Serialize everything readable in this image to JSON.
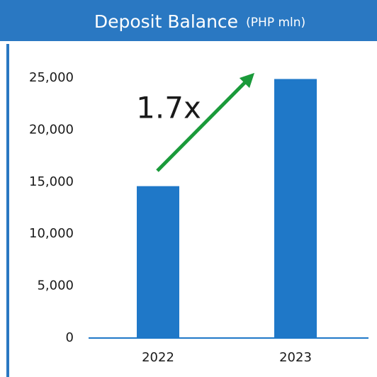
{
  "chart_data": {
    "type": "bar",
    "title": "Deposit Balance",
    "subtitle": "(PHP mln)",
    "categories": [
      "2022",
      "2023"
    ],
    "values": [
      14600,
      24900
    ],
    "color": "#1f78c8",
    "ylim": [
      0,
      25000
    ],
    "yticks": [
      0,
      {
        "value": 5000,
        "label": "5,000"
      },
      {
        "value": 10000,
        "label": "10,000"
      },
      {
        "value": 15000,
        "label": "15,000"
      },
      {
        "value": 20000,
        "label": "20,000"
      },
      {
        "value": 25000,
        "label": "25,000"
      }
    ],
    "annotation": "1.7x",
    "arrow_color": "#1a9a3a"
  }
}
